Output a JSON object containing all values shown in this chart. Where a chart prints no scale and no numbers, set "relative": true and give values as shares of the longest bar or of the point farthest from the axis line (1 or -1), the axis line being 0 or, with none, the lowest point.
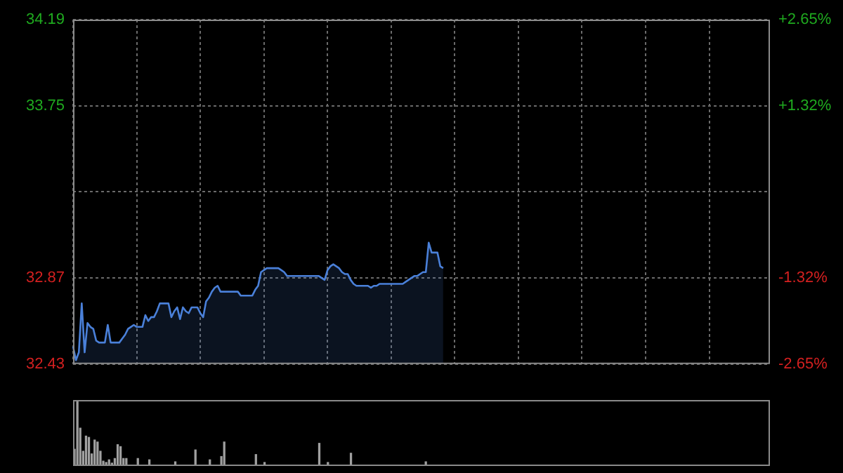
{
  "chart_data": [
    {
      "type": "area",
      "categories": [
        null,
        null,
        null,
        null,
        null,
        null,
        null,
        null,
        null,
        null,
        null,
        null,
        null,
        null,
        null,
        null,
        null,
        null,
        null,
        null,
        null,
        null,
        null,
        null,
        null,
        null,
        null,
        null,
        null,
        null,
        null,
        null,
        null,
        null,
        null,
        null,
        null,
        null,
        null,
        null,
        null,
        null,
        null,
        null,
        null,
        null,
        null,
        null,
        null,
        null,
        null,
        null,
        null,
        null,
        null,
        null,
        null,
        null,
        null,
        null,
        null,
        null,
        null,
        null,
        null,
        null,
        null,
        null,
        null,
        null,
        null,
        null,
        null,
        null,
        null,
        null,
        null,
        null,
        null,
        null,
        null,
        null,
        null,
        null,
        null,
        null,
        null,
        null,
        null,
        null,
        null,
        null,
        null,
        null,
        null,
        null,
        null,
        null,
        null,
        null,
        null,
        null,
        null,
        null,
        null,
        null,
        null,
        null,
        null,
        null,
        null,
        null,
        null,
        null,
        null,
        null,
        null,
        null,
        null,
        null,
        null,
        null,
        null,
        null,
        null,
        null,
        null,
        null,
        null,
        null,
        null,
        null,
        null,
        null,
        null,
        null,
        null,
        null,
        null,
        null,
        null,
        null,
        null,
        null,
        null,
        null,
        null,
        null,
        null,
        null,
        null,
        null,
        null,
        null,
        null,
        null,
        null,
        null,
        null,
        null,
        null,
        null,
        null,
        null,
        null,
        null,
        null,
        null,
        null,
        null,
        null,
        null,
        null,
        null,
        null,
        null,
        null,
        null,
        null,
        null,
        null,
        null,
        null,
        null,
        null,
        null,
        null,
        null,
        null,
        null,
        null,
        null,
        null,
        null,
        null,
        null,
        null,
        null,
        null,
        null,
        null,
        null,
        null,
        null,
        null,
        null,
        null,
        null,
        null,
        null,
        null,
        null,
        null,
        null,
        null,
        null,
        null,
        null,
        null,
        null,
        null,
        null,
        null,
        null,
        null,
        null,
        null,
        null,
        null,
        null,
        null,
        null,
        null,
        null,
        null,
        null,
        null,
        null,
        null,
        null,
        null,
        null
      ],
      "values": [
        32.52,
        32.45,
        32.49,
        32.74,
        32.49,
        32.64,
        32.62,
        32.61,
        32.55,
        32.54,
        32.54,
        32.54,
        32.63,
        32.54,
        32.54,
        32.54,
        32.54,
        32.56,
        32.58,
        32.61,
        32.62,
        32.63,
        32.62,
        32.62,
        32.62,
        32.68,
        32.65,
        32.67,
        32.67,
        32.7,
        32.74,
        32.74,
        32.74,
        32.74,
        32.67,
        32.7,
        32.72,
        32.66,
        32.72,
        32.7,
        32.69,
        32.72,
        32.72,
        32.72,
        32.69,
        32.67,
        32.75,
        32.77,
        32.8,
        32.82,
        32.83,
        32.8,
        32.8,
        32.8,
        32.8,
        32.8,
        32.8,
        32.8,
        32.78,
        32.78,
        32.78,
        32.78,
        32.78,
        32.81,
        32.83,
        32.9,
        32.91,
        32.92,
        32.92,
        32.92,
        32.92,
        32.92,
        32.91,
        32.9,
        32.88,
        32.88,
        32.88,
        32.88,
        32.88,
        32.88,
        32.88,
        32.88,
        32.88,
        32.88,
        32.88,
        32.88,
        32.87,
        32.86,
        32.91,
        32.93,
        32.94,
        32.93,
        32.92,
        32.9,
        32.89,
        32.89,
        32.86,
        32.84,
        32.83,
        32.83,
        32.83,
        32.83,
        32.83,
        32.82,
        32.83,
        32.83,
        32.84,
        32.84,
        32.84,
        32.84,
        32.84,
        32.84,
        32.84,
        32.84,
        32.84,
        32.85,
        32.86,
        32.87,
        32.88,
        32.88,
        32.89,
        32.9,
        32.9,
        33.05,
        33.0,
        33.0,
        33.0,
        32.93,
        32.92,
        null,
        null,
        null,
        null,
        null,
        null,
        null,
        null,
        null,
        null,
        null,
        null,
        null,
        null,
        null,
        null,
        null,
        null,
        null,
        null,
        null,
        null,
        null,
        null,
        null,
        null,
        null,
        null,
        null,
        null,
        null,
        null,
        null,
        null,
        null,
        null,
        null,
        null,
        null,
        null,
        null,
        null,
        null,
        null,
        null,
        null,
        null,
        null,
        null,
        null,
        null,
        null,
        null,
        null,
        null,
        null,
        null,
        null,
        null,
        null,
        null,
        null,
        null,
        null,
        null,
        null,
        null,
        null,
        null,
        null,
        null,
        null,
        null,
        null,
        null,
        null,
        null,
        null,
        null,
        null,
        null,
        null,
        null,
        null,
        null,
        null,
        null,
        null,
        null,
        null,
        null,
        null,
        null,
        null,
        null,
        null,
        null,
        null,
        null,
        null,
        null,
        null,
        null,
        null,
        null,
        null,
        null,
        null,
        null,
        null,
        null,
        null,
        null
      ],
      "color": "#4a80d9",
      "ylim": [
        32.43,
        34.19
      ],
      "yticks": [
        32.43,
        32.87,
        {
          "value": 33.31,
          "label": null
        },
        33.75,
        34.19
      ],
      "y2lim": [
        -2.65,
        2.65
      ],
      "y2ticks": [
        {
          "value": -2.65,
          "label": "-2.65%"
        },
        {
          "value": -1.32,
          "label": "-1.32%"
        },
        {
          "value": 0,
          "label": null
        },
        {
          "value": 1.32,
          "label": "+1.32%"
        },
        {
          "value": 2.65,
          "label": "+2.65%"
        }
      ],
      "grid": true,
      "tick_labels": "y"
    },
    {
      "type": "bar",
      "relative": true,
      "categories": [
        null,
        null,
        null,
        null,
        null,
        null,
        null,
        null,
        null,
        null,
        null,
        null,
        null,
        null,
        null,
        null,
        null,
        null,
        null,
        null,
        null,
        null,
        null,
        null,
        null,
        null,
        null,
        null,
        null,
        null,
        null,
        null,
        null,
        null,
        null,
        null,
        null,
        null,
        null,
        null,
        null,
        null,
        null,
        null,
        null,
        null,
        null,
        null,
        null,
        null,
        null,
        null,
        null,
        null,
        null,
        null,
        null,
        null,
        null,
        null,
        null,
        null,
        null,
        null,
        null,
        null,
        null,
        null,
        null,
        null,
        null,
        null,
        null,
        null,
        null,
        null,
        null,
        null,
        null,
        null,
        null,
        null,
        null,
        null,
        null,
        null,
        null,
        null,
        null,
        null,
        null,
        null,
        null,
        null,
        null,
        null,
        null,
        null,
        null,
        null,
        null,
        null,
        null,
        null,
        null,
        null,
        null,
        null,
        null,
        null,
        null,
        null,
        null,
        null,
        null,
        null,
        null,
        null,
        null,
        null,
        null,
        null,
        null,
        null,
        null,
        null,
        null,
        null,
        null,
        null,
        null,
        null,
        null,
        null,
        null,
        null,
        null,
        null,
        null,
        null,
        null,
        null,
        null,
        null,
        null,
        null,
        null,
        null,
        null,
        null,
        null,
        null,
        null,
        null,
        null,
        null,
        null,
        null,
        null,
        null,
        null,
        null,
        null,
        null,
        null,
        null,
        null,
        null,
        null,
        null,
        null,
        null,
        null,
        null,
        null,
        null,
        null,
        null,
        null,
        null,
        null,
        null,
        null,
        null,
        null,
        null,
        null,
        null,
        null,
        null,
        null,
        null,
        null,
        null,
        null,
        null,
        null,
        null,
        null,
        null,
        null,
        null,
        null,
        null,
        null,
        null,
        null,
        null,
        null,
        null,
        null,
        null,
        null,
        null,
        null,
        null,
        null,
        null,
        null,
        null,
        null,
        null,
        null,
        null,
        null,
        null,
        null,
        null,
        null,
        null,
        null,
        null,
        null,
        null,
        null,
        null,
        null,
        null,
        null,
        null,
        null,
        null
      ],
      "values": [
        0.26,
        1,
        0.58,
        0.23,
        0.46,
        0.44,
        0.19,
        0.4,
        0.37,
        0.23,
        0.08,
        0.06,
        0.1,
        0.05,
        0.12,
        0.33,
        0.3,
        0.12,
        0.12,
        0.02,
        0.02,
        0.02,
        0.12,
        0.02,
        0.02,
        0.02,
        0.1,
        0.02,
        0.02,
        0.02,
        0.02,
        0.02,
        0.02,
        0.02,
        0.02,
        0.07,
        0.02,
        0.02,
        0.02,
        0.02,
        0.02,
        0.02,
        0.25,
        0.02,
        0.02,
        0.02,
        0.02,
        0.1,
        0.02,
        0.02,
        0.02,
        0.15,
        0.37,
        0.02,
        0.02,
        0.02,
        0.02,
        0.02,
        0.02,
        0.02,
        0.02,
        0.02,
        0.02,
        0.18,
        0.02,
        0.02,
        0.06,
        0.02,
        0.02,
        0.02,
        0.02,
        0.02,
        0.02,
        0.02,
        0.02,
        0.02,
        0.02,
        0.02,
        0.02,
        0.02,
        0.02,
        0.02,
        0.02,
        0.02,
        0.02,
        0.35,
        0.02,
        0.02,
        0.06,
        0.02,
        0.02,
        0.02,
        0.02,
        0.02,
        0.02,
        0.02,
        0.2,
        0.02,
        0.02,
        0.02,
        0.02,
        0.02,
        0.02,
        0.02,
        0.02,
        0.02,
        0.02,
        0.02,
        0.02,
        0.02,
        0.02,
        0.02,
        0.02,
        0.02,
        0.02,
        0.02,
        0.02,
        0.02,
        0.02,
        0.02,
        0.02,
        0.02,
        0.07,
        0.02,
        0.02,
        0.02,
        0.02,
        0.02,
        0.02,
        null,
        null,
        null,
        null,
        null,
        null,
        null,
        null,
        null,
        null,
        null,
        null,
        null,
        null,
        null,
        null,
        null,
        null,
        null,
        null,
        null,
        null,
        null,
        null,
        null,
        null,
        null,
        null,
        null,
        null,
        null,
        null,
        null,
        null,
        null,
        null,
        null,
        null,
        null,
        null,
        null,
        null,
        null,
        null,
        null,
        null,
        null,
        null,
        null,
        null,
        null,
        null,
        null,
        null,
        null,
        null,
        null,
        null,
        null,
        null,
        null,
        null,
        null,
        null,
        null,
        null,
        null,
        null,
        null,
        null,
        null,
        null,
        null,
        null,
        null,
        null,
        null,
        null,
        null,
        null,
        null,
        null,
        null,
        null,
        null,
        null,
        null,
        null,
        null,
        null,
        null,
        null,
        null,
        null,
        null,
        null,
        null,
        null,
        null,
        null,
        null,
        null,
        null,
        null,
        null,
        null,
        null,
        null,
        null,
        null,
        null,
        null,
        null
      ],
      "color": "#a0a0a0",
      "tick_labels": false
    }
  ]
}
